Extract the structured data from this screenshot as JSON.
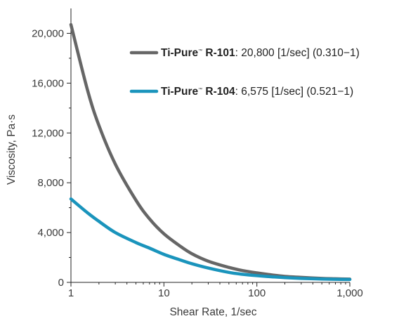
{
  "chart_data": {
    "type": "line",
    "x_scale": "log",
    "xlabel": "Shear Rate, 1/sec",
    "ylabel": "Viscosity, Pa·s",
    "xlim": [
      1,
      1000
    ],
    "ylim": [
      0,
      22000
    ],
    "x_ticks": [
      1,
      10,
      100,
      1000
    ],
    "x_tick_labels": [
      "1",
      "10",
      "100",
      "1,000"
    ],
    "y_ticks": [
      0,
      4000,
      8000,
      12000,
      16000,
      20000
    ],
    "y_tick_labels": [
      "0",
      "4,000",
      "8,000",
      "12,000",
      "16,000",
      "20,000"
    ],
    "grid": false,
    "legend_position": "top-right",
    "series": [
      {
        "name": "Ti-Pure™ R-101",
        "legend_label": "Ti-Pure™ R-101: 20,800 [1/sec] (0.310−1)",
        "legend_bold": "Ti-Pure",
        "legend_tm": "™",
        "legend_bold2": " R-101",
        "legend_rest": ": 20,800 [1/sec] (0.310−1)",
        "color": "#666666",
        "x": [
          1,
          1.5,
          2,
          3,
          5,
          7,
          10,
          15,
          20,
          30,
          50,
          70,
          100,
          150,
          200,
          300,
          500,
          700,
          1000
        ],
        "y": [
          20700,
          15500,
          12600,
          9500,
          6600,
          5100,
          3900,
          2900,
          2300,
          1700,
          1200,
          950,
          760,
          580,
          480,
          400,
          320,
          290,
          260
        ]
      },
      {
        "name": "Ti-Pure™ R-104",
        "legend_label": "Ti-Pure™ R-104: 6,575 [1/sec] (0.521−1)",
        "legend_bold": "Ti-Pure",
        "legend_tm": "™",
        "legend_bold2": " R-104",
        "legend_rest": ": 6,575 [1/sec] (0.521−1)",
        "color": "#1a94bc",
        "x": [
          1,
          1.5,
          2,
          3,
          5,
          7,
          10,
          15,
          20,
          30,
          50,
          70,
          100,
          150,
          200,
          300,
          500,
          700,
          1000
        ],
        "y": [
          6700,
          5600,
          4900,
          4000,
          3200,
          2750,
          2250,
          1800,
          1500,
          1150,
          800,
          650,
          540,
          440,
          380,
          320,
          270,
          250,
          230
        ]
      }
    ]
  }
}
